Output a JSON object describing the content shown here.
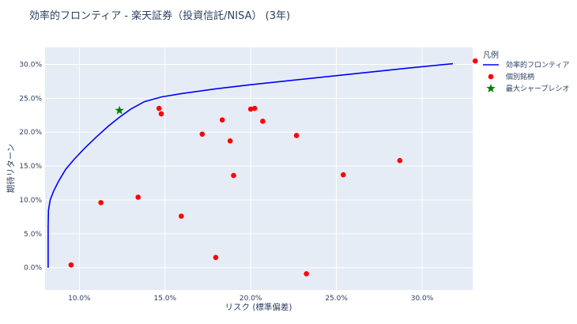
{
  "chart_data": {
    "type": "scatter",
    "title": "効率的フロンティア - 楽天証券（投資信託/NISA） (3年)",
    "xlabel": "リスク (標準偏差)",
    "ylabel": "期待リターン",
    "xlim": [
      0.08,
      0.3295
    ],
    "ylim": [
      -0.033,
      0.325
    ],
    "x_ticks": [
      {
        "value": 0.1,
        "label": "10.0%"
      },
      {
        "value": 0.15,
        "label": "15.0%"
      },
      {
        "value": 0.2,
        "label": "20.0%"
      },
      {
        "value": 0.25,
        "label": "25.0%"
      },
      {
        "value": 0.3,
        "label": "30.0%"
      }
    ],
    "y_ticks": [
      {
        "value": 0.0,
        "label": "0.0%"
      },
      {
        "value": 0.05,
        "label": "5.0%"
      },
      {
        "value": 0.1,
        "label": "10.0%"
      },
      {
        "value": 0.15,
        "label": "15.0%"
      },
      {
        "value": 0.2,
        "label": "20.0%"
      },
      {
        "value": 0.25,
        "label": "25.0%"
      },
      {
        "value": 0.3,
        "label": "30.0%"
      }
    ],
    "grid": true,
    "legend_title": "凡例",
    "legend_position": "right",
    "series": [
      {
        "name": "効率的フロンティア",
        "kind": "line",
        "color": "#0000ff",
        "points": [
          [
            0.0818,
            0.0
          ],
          [
            0.0818,
            0.02
          ],
          [
            0.0818,
            0.06
          ],
          [
            0.082,
            0.085
          ],
          [
            0.083,
            0.1
          ],
          [
            0.085,
            0.113
          ],
          [
            0.088,
            0.128
          ],
          [
            0.092,
            0.145
          ],
          [
            0.097,
            0.16
          ],
          [
            0.103,
            0.176
          ],
          [
            0.11,
            0.193
          ],
          [
            0.117,
            0.209
          ],
          [
            0.1234,
            0.222
          ],
          [
            0.13,
            0.234
          ],
          [
            0.138,
            0.245
          ],
          [
            0.148,
            0.252
          ],
          [
            0.16,
            0.257
          ],
          [
            0.18,
            0.264
          ],
          [
            0.2,
            0.27
          ],
          [
            0.23,
            0.278
          ],
          [
            0.26,
            0.286
          ],
          [
            0.29,
            0.294
          ],
          [
            0.318,
            0.301
          ]
        ]
      },
      {
        "name": "個別銘柄",
        "kind": "markers",
        "color": "#ff0000",
        "points": [
          [
            0.0952,
            0.004
          ],
          [
            0.1126,
            0.096
          ],
          [
            0.1343,
            0.104
          ],
          [
            0.1465,
            0.235
          ],
          [
            0.1478,
            0.227
          ],
          [
            0.1595,
            0.076
          ],
          [
            0.1717,
            0.197
          ],
          [
            0.1796,
            0.015
          ],
          [
            0.1834,
            0.218
          ],
          [
            0.188,
            0.187
          ],
          [
            0.19,
            0.136
          ],
          [
            0.2,
            0.234
          ],
          [
            0.2023,
            0.235
          ],
          [
            0.207,
            0.216
          ],
          [
            0.2267,
            0.195
          ],
          [
            0.2325,
            -0.009
          ],
          [
            0.254,
            0.137
          ],
          [
            0.287,
            0.158
          ],
          [
            0.331,
            0.305
          ]
        ]
      },
      {
        "name": "最大シャープレシオ",
        "kind": "star",
        "color": "#008000",
        "points": [
          [
            0.1234,
            0.232
          ]
        ]
      }
    ]
  }
}
